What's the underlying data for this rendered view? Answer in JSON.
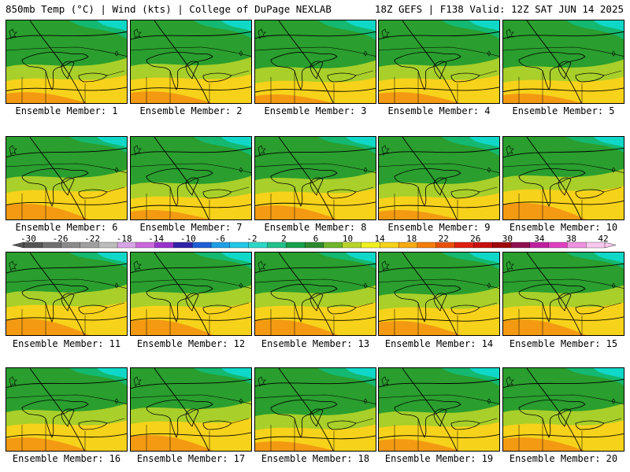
{
  "header": {
    "left_title": "850mb Temp (°C) | Wind (kts) | College of DuPage NEXLAB",
    "right_title": "18Z GEFS | F138 Valid: 12Z SAT JUN 14 2025"
  },
  "members": [
    {
      "label": "Ensemble Member: 1",
      "warmth": 0.35
    },
    {
      "label": "Ensemble Member: 2",
      "warmth": 0.4
    },
    {
      "label": "Ensemble Member: 3",
      "warmth": 0.25
    },
    {
      "label": "Ensemble Member: 4",
      "warmth": 0.35
    },
    {
      "label": "Ensemble Member: 5",
      "warmth": 0.3
    },
    {
      "label": "Ensemble Member: 6",
      "warmth": 0.55
    },
    {
      "label": "Ensemble Member: 7",
      "warmth": 0.3
    },
    {
      "label": "Ensemble Member: 8",
      "warmth": 0.5
    },
    {
      "label": "Ensemble Member: 9",
      "warmth": 0.3
    },
    {
      "label": "Ensemble Member: 10",
      "warmth": 0.6
    },
    {
      "label": "Ensemble Member: 11",
      "warmth": 0.6
    },
    {
      "label": "Ensemble Member: 12",
      "warmth": 0.55
    },
    {
      "label": "Ensemble Member: 13",
      "warmth": 0.55
    },
    {
      "label": "Ensemble Member: 14",
      "warmth": 0.5
    },
    {
      "label": "Ensemble Member: 15",
      "warmth": 0.55
    },
    {
      "label": "Ensemble Member: 16",
      "warmth": 0.45
    },
    {
      "label": "Ensemble Member: 17",
      "warmth": 0.55
    },
    {
      "label": "Ensemble Member: 18",
      "warmth": 0.3
    },
    {
      "label": "Ensemble Member: 19",
      "warmth": 0.4
    },
    {
      "label": "Ensemble Member: 20",
      "warmth": 0.45
    }
  ],
  "colorbar": {
    "labels": [
      "-30",
      "-26",
      "-22",
      "-18",
      "-14",
      "-10",
      "-6",
      "-2",
      "2",
      "6",
      "10",
      "14",
      "18",
      "22",
      "26",
      "30",
      "34",
      "38",
      "42"
    ],
    "colors": [
      "#555555",
      "#707070",
      "#8a8a8a",
      "#a0a0a0",
      "#bdbdbd",
      "#d7a5e6",
      "#cc66dd",
      "#9933cc",
      "#3322aa",
      "#1f5fd6",
      "#1f9fe6",
      "#22c8e8",
      "#2ed8c8",
      "#22c08a",
      "#15a04a",
      "#2e8a2e",
      "#6fb52a",
      "#b8d42a",
      "#f0f020",
      "#f7d21a",
      "#f7aa12",
      "#f47d0c",
      "#e8500a",
      "#e02010",
      "#c81010",
      "#a00808",
      "#901050",
      "#c020a0",
      "#e040c0",
      "#f090e0",
      "#f8c8f0"
    ]
  },
  "palette": {
    "cold": "#10d8c8",
    "cool": "#14b870",
    "mid": "#2a9e2e",
    "warm": "#a8cf2a",
    "hot": "#f7d21a",
    "hottest": "#f39a12",
    "contour": "#000000"
  }
}
